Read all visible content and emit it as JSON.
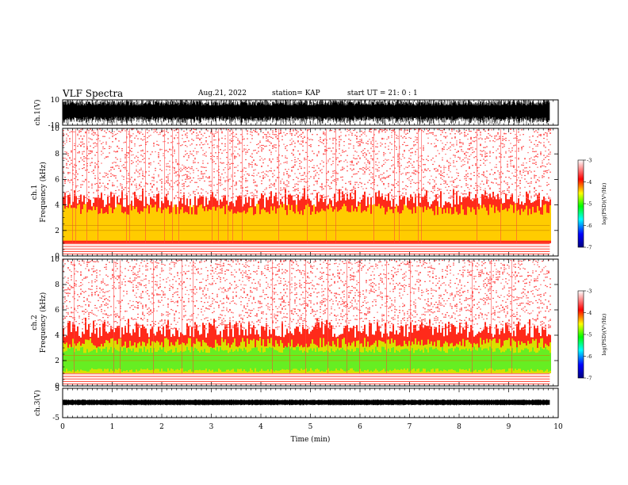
{
  "header": {
    "title": "VLF Spectra",
    "date": "Aug.21, 2022",
    "station": "station= KAP",
    "start_ut": "start  UT =  21: 0  : 1"
  },
  "chart_data": [
    {
      "type": "line",
      "name": "waveform-ch1",
      "ylabel": "ch.1(V)",
      "ylim": [
        -10,
        10
      ],
      "yticks": [
        "10",
        "-10"
      ],
      "xlim": [
        0,
        10
      ],
      "data_extent_min": 9.83
    },
    {
      "type": "heatmap",
      "name": "spectrogram-ch1",
      "ylabel": "ch.1\nFrequency (kHz)",
      "ylabel_line1": "ch.1",
      "ylabel_line2": "Frequency  (kHz)",
      "ylim": [
        0,
        10
      ],
      "yticks": [
        "0",
        "2",
        "4",
        "6",
        "8",
        "10"
      ],
      "xlim": [
        0,
        10
      ],
      "colorbar": {
        "label": "log(PSD)(V²/Hz)",
        "range": [
          -7,
          -3
        ],
        "ticks": [
          "-3",
          "-4",
          "-5",
          "-6",
          "-7"
        ],
        "colors": [
          "#000080",
          "#0000ff",
          "#00ffff",
          "#00ff00",
          "#ffff00",
          "#ff0000",
          "#ffffff"
        ]
      }
    },
    {
      "type": "heatmap",
      "name": "spectrogram-ch2",
      "ylabel_line1": "ch.2",
      "ylabel_line2": "Frequency  (kHz)",
      "ylim": [
        0,
        10
      ],
      "yticks": [
        "0",
        "2",
        "4",
        "6",
        "8",
        "10"
      ],
      "xlim": [
        0,
        10
      ],
      "colorbar": {
        "label": "log(PSD)(V²/Hz)",
        "range": [
          -7,
          -3
        ],
        "ticks": [
          "-3",
          "-4",
          "-5",
          "-6",
          "-7"
        ]
      }
    },
    {
      "type": "line",
      "name": "waveform-ch3",
      "ylabel": "ch.3(V)",
      "ylim": [
        -5,
        5
      ],
      "yticks": [
        "5",
        "-5"
      ],
      "xlim": [
        0,
        10
      ],
      "xticks": [
        "0",
        "1",
        "2",
        "3",
        "4",
        "5",
        "6",
        "7",
        "8",
        "9",
        "10"
      ],
      "xlabel": "Time  (min)"
    }
  ],
  "colors": {
    "background": "#ffffff",
    "axis": "#000000"
  }
}
